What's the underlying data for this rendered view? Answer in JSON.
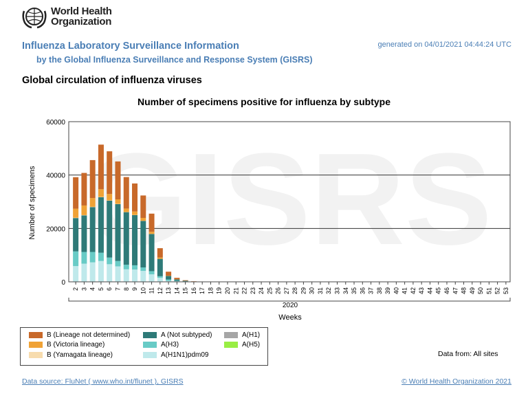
{
  "header": {
    "logo_text_line1": "World Health",
    "logo_text_line2": "Organization",
    "title": "Influenza Laboratory Surveillance Information",
    "subtitle": "by the Global Influenza Surveillance and Response System (GISRS)",
    "generated": "generated on 04/01/2021 04:44:24 UTC",
    "section_title": "Global circulation of influenza viruses"
  },
  "chart_data": {
    "type": "bar",
    "stacked": true,
    "title": "Number of specimens positive for influenza by subtype",
    "xlabel": "Weeks",
    "x_group_label": "2020",
    "ylabel": "Number of specimens",
    "ylim": [
      0,
      60000
    ],
    "yticks": [
      "0",
      "20000",
      "40000",
      "60000"
    ],
    "watermark": "GISRS",
    "grid": true,
    "legend_placement": "bottom-left",
    "categories": [
      "2",
      "3",
      "4",
      "5",
      "6",
      "7",
      "8",
      "9",
      "10",
      "11",
      "12",
      "13",
      "14",
      "15",
      "16",
      "17",
      "18",
      "19",
      "20",
      "21",
      "22",
      "23",
      "24",
      "25",
      "26",
      "27",
      "28",
      "29",
      "30",
      "31",
      "32",
      "33",
      "34",
      "35",
      "36",
      "37",
      "38",
      "39",
      "40",
      "41",
      "42",
      "43",
      "44",
      "45",
      "46",
      "47",
      "48",
      "49",
      "50",
      "51",
      "52",
      "53"
    ],
    "series": [
      {
        "name": "B (Lineage not determined)",
        "color": "#c8692a",
        "values": [
          11800,
          12200,
          14200,
          16700,
          16000,
          14200,
          11800,
          10500,
          8400,
          6800,
          3500,
          1500,
          500,
          200,
          100,
          0,
          0,
          0,
          0,
          0,
          0,
          0,
          0,
          0,
          0,
          0,
          0,
          0,
          0,
          0,
          0,
          0,
          0,
          0,
          0,
          0,
          0,
          0,
          0,
          0,
          0,
          0,
          0,
          0,
          0,
          0,
          0,
          0,
          0,
          0,
          0,
          0
        ]
      },
      {
        "name": "B (Victoria lineage)",
        "color": "#f0a236",
        "values": [
          3400,
          3600,
          3300,
          2900,
          2400,
          1700,
          1300,
          1300,
          1100,
          800,
          500,
          100,
          100,
          0,
          0,
          0,
          0,
          0,
          0,
          0,
          0,
          0,
          0,
          0,
          0,
          0,
          0,
          0,
          0,
          0,
          0,
          0,
          0,
          0,
          0,
          0,
          0,
          0,
          0,
          0,
          0,
          0,
          0,
          0,
          0,
          0,
          0,
          0,
          0,
          0,
          0,
          0
        ]
      },
      {
        "name": "B (Yamagata lineage)",
        "color": "#f7dcae",
        "values": [
          100,
          100,
          100,
          100,
          100,
          100,
          50,
          50,
          50,
          50,
          0,
          0,
          0,
          0,
          0,
          0,
          0,
          0,
          0,
          0,
          0,
          0,
          0,
          0,
          0,
          0,
          0,
          0,
          0,
          0,
          0,
          0,
          0,
          0,
          0,
          0,
          0,
          0,
          0,
          0,
          0,
          0,
          0,
          0,
          0,
          0,
          0,
          0,
          0,
          0,
          0,
          0
        ]
      },
      {
        "name": "A (Not subtyped)",
        "color": "#2e7a78",
        "values": [
          12500,
          13700,
          16800,
          20800,
          21300,
          21300,
          19700,
          18800,
          17400,
          13900,
          6500,
          1300,
          500,
          200,
          50,
          0,
          0,
          0,
          0,
          0,
          0,
          0,
          0,
          0,
          0,
          0,
          0,
          0,
          0,
          0,
          0,
          0,
          0,
          0,
          0,
          0,
          0,
          0,
          0,
          0,
          0,
          0,
          0,
          0,
          0,
          0,
          0,
          0,
          0,
          0,
          0,
          0
        ]
      },
      {
        "name": "A(H3)",
        "color": "#68cbc6",
        "values": [
          5500,
          4400,
          3900,
          3100,
          2500,
          2000,
          1700,
          1600,
          1300,
          1200,
          600,
          500,
          200,
          100,
          0,
          0,
          0,
          0,
          0,
          0,
          0,
          0,
          0,
          0,
          0,
          0,
          0,
          0,
          0,
          0,
          0,
          0,
          0,
          0,
          0,
          0,
          0,
          0,
          0,
          0,
          0,
          0,
          0,
          0,
          0,
          0,
          0,
          0,
          0,
          0,
          0,
          0
        ]
      },
      {
        "name": "A(H1N1)pdm09",
        "color": "#bfe9eb",
        "values": [
          5900,
          6800,
          7300,
          7800,
          6600,
          5800,
          4700,
          4600,
          4100,
          2800,
          1500,
          400,
          200,
          100,
          50,
          0,
          0,
          0,
          0,
          0,
          0,
          0,
          0,
          0,
          0,
          0,
          0,
          0,
          0,
          0,
          0,
          0,
          0,
          0,
          0,
          0,
          0,
          0,
          0,
          0,
          0,
          0,
          0,
          0,
          0,
          0,
          0,
          0,
          0,
          0,
          0,
          0
        ]
      },
      {
        "name": "A(H1)",
        "color": "#a6a6a6",
        "values": [
          0,
          0,
          0,
          0,
          0,
          0,
          0,
          0,
          0,
          0,
          0,
          0,
          0,
          0,
          0,
          0,
          0,
          0,
          0,
          0,
          0,
          0,
          0,
          0,
          0,
          0,
          0,
          0,
          0,
          0,
          0,
          0,
          0,
          0,
          0,
          0,
          0,
          0,
          0,
          0,
          0,
          0,
          0,
          0,
          0,
          0,
          0,
          0,
          0,
          0,
          0,
          0
        ]
      },
      {
        "name": "A(H5)",
        "color": "#99ee44",
        "values": [
          0,
          0,
          0,
          0,
          0,
          0,
          0,
          0,
          0,
          0,
          0,
          0,
          0,
          0,
          0,
          0,
          0,
          0,
          0,
          0,
          0,
          0,
          0,
          0,
          0,
          0,
          0,
          0,
          0,
          0,
          0,
          0,
          0,
          0,
          0,
          0,
          0,
          0,
          0,
          0,
          0,
          0,
          0,
          0,
          0,
          0,
          0,
          0,
          0,
          0,
          0,
          0
        ]
      }
    ]
  },
  "footer": {
    "data_from": "Data from: All sites",
    "source": "Data source: FluNet ( www.who.int/flunet ), GISRS",
    "copyright": "© World Health Organization 2021"
  }
}
